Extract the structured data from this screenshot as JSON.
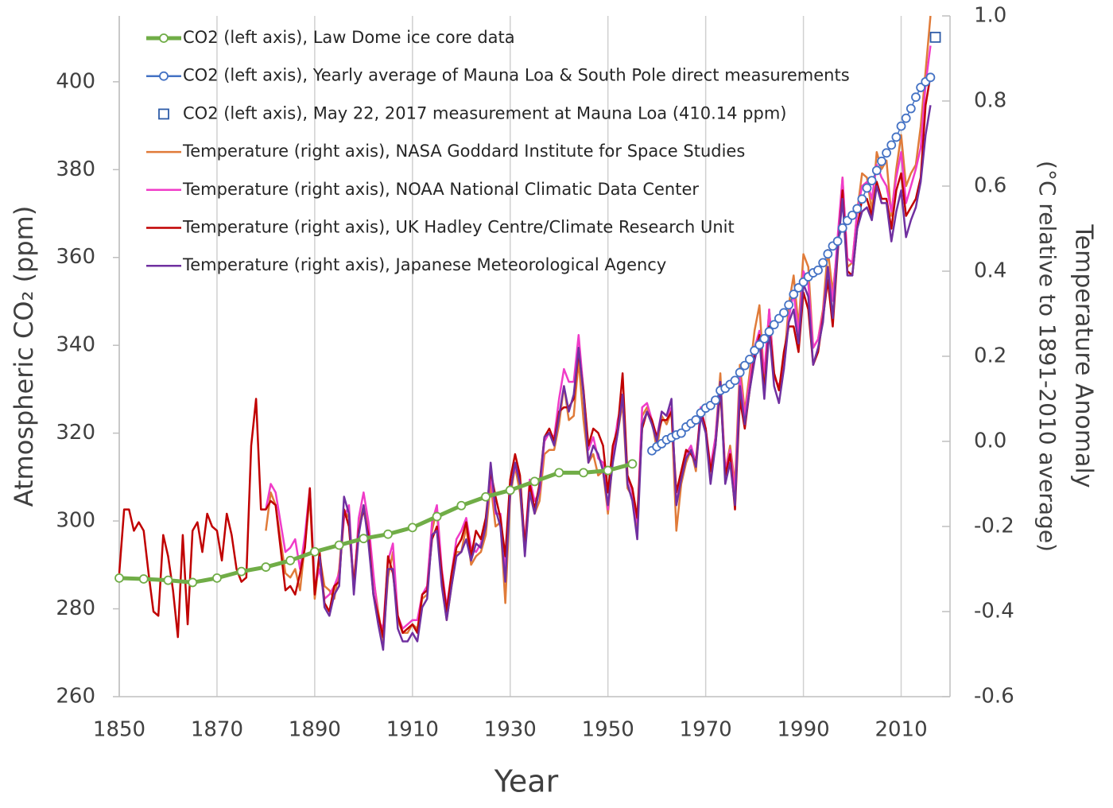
{
  "chart_data": {
    "type": "line",
    "xlabel": "Year",
    "ylabel": "Atmospheric CO₂ (ppm)",
    "y2label": [
      "Temperature Anomaly",
      "(°C relative to 1891-2010 average)"
    ],
    "xlim": [
      1850,
      2020
    ],
    "xticks": [
      1850,
      1870,
      1890,
      1910,
      1930,
      1950,
      1970,
      1990,
      2010
    ],
    "ylim": [
      260,
      415
    ],
    "yticks": [
      260,
      280,
      300,
      320,
      340,
      360,
      380,
      400
    ],
    "y2lim": [
      -0.6,
      1.0
    ],
    "y2ticks": [
      -0.6,
      -0.4,
      -0.2,
      {
        "value": 0,
        "label": "0.0"
      },
      0.2,
      0.4,
      0.6,
      0.8,
      {
        "value": 1,
        "label": "1.0"
      }
    ],
    "grid": "x",
    "legend": "upper left",
    "x": [
      1850,
      1851,
      1852,
      1853,
      1854,
      1855,
      1856,
      1857,
      1858,
      1859,
      1860,
      1861,
      1862,
      1863,
      1864,
      1865,
      1866,
      1867,
      1868,
      1869,
      1870,
      1871,
      1872,
      1873,
      1874,
      1875,
      1876,
      1877,
      1878,
      1879,
      1880,
      1881,
      1882,
      1883,
      1884,
      1885,
      1886,
      1887,
      1888,
      1889,
      1890,
      1891,
      1892,
      1893,
      1894,
      1895,
      1896,
      1897,
      1898,
      1899,
      1900,
      1901,
      1902,
      1903,
      1904,
      1905,
      1906,
      1907,
      1908,
      1909,
      1910,
      1911,
      1912,
      1913,
      1914,
      1915,
      1916,
      1917,
      1918,
      1919,
      1920,
      1921,
      1922,
      1923,
      1924,
      1925,
      1926,
      1927,
      1928,
      1929,
      1930,
      1931,
      1932,
      1933,
      1934,
      1935,
      1936,
      1937,
      1938,
      1939,
      1940,
      1941,
      1942,
      1943,
      1944,
      1945,
      1946,
      1947,
      1948,
      1949,
      1950,
      1951,
      1952,
      1953,
      1954,
      1955,
      1956,
      1957,
      1958,
      1959,
      1960,
      1961,
      1962,
      1963,
      1964,
      1965,
      1966,
      1967,
      1968,
      1969,
      1970,
      1971,
      1972,
      1973,
      1974,
      1975,
      1976,
      1977,
      1978,
      1979,
      1980,
      1981,
      1982,
      1983,
      1984,
      1985,
      1986,
      1987,
      1988,
      1989,
      1990,
      1991,
      1992,
      1993,
      1994,
      1995,
      1996,
      1997,
      1998,
      1999,
      2000,
      2001,
      2002,
      2003,
      2004,
      2005,
      2006,
      2007,
      2008,
      2009,
      2010,
      2011,
      2012,
      2013,
      2014,
      2015,
      2016
    ],
    "series": [
      {
        "name": "CO2 (left axis), Law Dome ice core data",
        "color": "#70ad47",
        "marker": "circle",
        "line": true,
        "width": 5,
        "x": [
          1850,
          1855,
          1860,
          1865,
          1870,
          1875,
          1880,
          1885,
          1890,
          1895,
          1900,
          1905,
          1910,
          1915,
          1920,
          1925,
          1930,
          1935,
          1940,
          1945,
          1950,
          1955
        ],
        "values": [
          287,
          286.8,
          286.5,
          286,
          287,
          288.5,
          289.5,
          291,
          293,
          294.5,
          296,
          297,
          298.5,
          301,
          303.5,
          305.5,
          307,
          309,
          311,
          311,
          311.5,
          313
        ]
      },
      {
        "name": "CO2 (left axis), Yearly average of Mauna Loa & South Pole direct measurements",
        "color": "#4472c4",
        "marker": "circle",
        "line": true,
        "width": 1.5,
        "x": [
          1959,
          1960,
          1961,
          1962,
          1963,
          1964,
          1965,
          1966,
          1967,
          1968,
          1969,
          1970,
          1971,
          1972,
          1973,
          1974,
          1975,
          1976,
          1977,
          1978,
          1979,
          1980,
          1981,
          1982,
          1983,
          1984,
          1985,
          1986,
          1987,
          1988,
          1989,
          1990,
          1991,
          1992,
          1993,
          1994,
          1995,
          1996,
          1997,
          1998,
          1999,
          2000,
          2001,
          2002,
          2003,
          2004,
          2005,
          2006,
          2007,
          2008,
          2009,
          2010,
          2011,
          2012,
          2013,
          2014,
          2015,
          2016
        ],
        "values": [
          316,
          316.9,
          317.6,
          318.5,
          319,
          319.6,
          320,
          321.4,
          322.2,
          323,
          324.6,
          325.7,
          326.3,
          327.5,
          329.7,
          330.2,
          331.1,
          332,
          333.8,
          335.4,
          336.8,
          338.8,
          340.1,
          341.5,
          343.1,
          344.7,
          346.1,
          347.4,
          349.2,
          351.6,
          353.1,
          354.4,
          355.6,
          356.5,
          357.1,
          358.8,
          360.8,
          362.6,
          363.7,
          366.7,
          368.4,
          369.6,
          371.1,
          373.3,
          375.8,
          377.5,
          379.8,
          381.9,
          383.8,
          385.6,
          387.4,
          389.9,
          391.7,
          393.9,
          396.5,
          398.7,
          400,
          401
        ]
      },
      {
        "name": "CO2 (left axis), May 22, 2017 measurement at Mauna Loa (410.14 ppm)",
        "color": "#2e5ca8",
        "marker": "square",
        "line": false,
        "x": [
          2017
        ],
        "values": [
          410.14
        ]
      },
      {
        "name": "Temperature (right axis), NASA Goddard Institute for Space Studies",
        "color": "#e07b39",
        "axis": "y2",
        "line": true,
        "width": 2.5,
        "values": [
          null,
          null,
          null,
          null,
          null,
          null,
          null,
          null,
          null,
          null,
          null,
          null,
          null,
          null,
          null,
          null,
          null,
          null,
          null,
          null,
          null,
          null,
          null,
          null,
          null,
          null,
          null,
          null,
          null,
          null,
          -0.21,
          -0.12,
          -0.15,
          -0.23,
          -0.31,
          -0.32,
          -0.3,
          -0.35,
          -0.24,
          -0.13,
          -0.37,
          -0.27,
          -0.34,
          -0.35,
          -0.37,
          -0.3,
          -0.16,
          -0.18,
          -0.33,
          -0.2,
          -0.15,
          -0.21,
          -0.32,
          -0.4,
          -0.47,
          -0.32,
          -0.26,
          -0.42,
          -0.45,
          -0.45,
          -0.43,
          -0.44,
          -0.37,
          -0.36,
          -0.21,
          -0.16,
          -0.33,
          -0.42,
          -0.34,
          -0.26,
          -0.26,
          -0.2,
          -0.29,
          -0.27,
          -0.26,
          -0.22,
          -0.1,
          -0.2,
          -0.19,
          -0.38,
          -0.13,
          -0.06,
          -0.12,
          -0.26,
          -0.12,
          -0.17,
          -0.14,
          -0.03,
          -0.02,
          -0.02,
          0.04,
          0.13,
          0.05,
          0.06,
          0.19,
          0.05,
          -0.05,
          -0.03,
          -0.08,
          -0.07,
          -0.17,
          -0.04,
          0.02,
          0.09,
          -0.11,
          -0.13,
          -0.2,
          0.06,
          0.08,
          0.05,
          -0.02,
          0.06,
          0.04,
          0.07,
          -0.21,
          -0.1,
          -0.05,
          -0.02,
          -0.07,
          0.08,
          0.03,
          -0.08,
          0.01,
          0.16,
          -0.07,
          -0.01,
          -0.1,
          0.18,
          0.07,
          0.16,
          0.26,
          0.32,
          0.14,
          0.31,
          0.16,
          0.12,
          0.18,
          0.32,
          0.39,
          0.27,
          0.44,
          0.41,
          0.22,
          0.24,
          0.31,
          0.45,
          0.35,
          0.46,
          0.62,
          0.41,
          0.42,
          0.54,
          0.63,
          0.62,
          0.54,
          0.68,
          0.64,
          0.66,
          0.53,
          0.64,
          0.72,
          0.6,
          0.63,
          0.65,
          0.74,
          0.87,
          1.0
        ]
      },
      {
        "name": "Temperature (right axis), NOAA National Climatic Data Center",
        "color": "#f03cc8",
        "axis": "y2",
        "line": true,
        "width": 2.5,
        "values": [
          null,
          null,
          null,
          null,
          null,
          null,
          null,
          null,
          null,
          null,
          null,
          null,
          null,
          null,
          null,
          null,
          null,
          null,
          null,
          null,
          null,
          null,
          null,
          null,
          null,
          null,
          null,
          null,
          null,
          null,
          -0.16,
          -0.1,
          -0.12,
          -0.19,
          -0.26,
          -0.25,
          -0.23,
          -0.3,
          -0.22,
          -0.11,
          -0.34,
          -0.3,
          -0.37,
          -0.36,
          -0.34,
          -0.31,
          -0.18,
          -0.15,
          -0.35,
          -0.18,
          -0.12,
          -0.19,
          -0.31,
          -0.42,
          -0.44,
          -0.28,
          -0.24,
          -0.41,
          -0.44,
          -0.43,
          -0.42,
          -0.42,
          -0.36,
          -0.34,
          -0.19,
          -0.15,
          -0.3,
          -0.39,
          -0.31,
          -0.23,
          -0.21,
          -0.18,
          -0.25,
          -0.26,
          -0.24,
          -0.19,
          -0.08,
          -0.17,
          -0.17,
          -0.3,
          -0.11,
          -0.06,
          -0.09,
          -0.24,
          -0.09,
          -0.14,
          -0.12,
          0.0,
          0.02,
          0.01,
          0.1,
          0.17,
          0.14,
          0.14,
          0.25,
          0.12,
          -0.02,
          0.01,
          -0.04,
          -0.05,
          -0.16,
          -0.03,
          0.05,
          0.1,
          -0.08,
          -0.12,
          -0.19,
          0.08,
          0.09,
          0.05,
          0.01,
          0.07,
          0.06,
          0.08,
          -0.15,
          -0.08,
          -0.03,
          -0.01,
          -0.05,
          0.08,
          0.03,
          -0.06,
          0.01,
          0.14,
          -0.07,
          -0.02,
          -0.12,
          0.15,
          0.06,
          0.14,
          0.22,
          0.26,
          0.16,
          0.31,
          0.15,
          0.13,
          0.17,
          0.29,
          0.35,
          0.25,
          0.4,
          0.37,
          0.22,
          0.24,
          0.3,
          0.41,
          0.33,
          0.48,
          0.62,
          0.43,
          0.42,
          0.54,
          0.6,
          0.61,
          0.57,
          0.65,
          0.62,
          0.6,
          0.54,
          0.62,
          0.68,
          0.56,
          0.6,
          0.64,
          0.69,
          0.84,
          0.93
        ]
      },
      {
        "name": "Temperature (right axis), UK Hadley Centre/Climate Research Unit",
        "color": "#c00000",
        "axis": "y2",
        "line": true,
        "width": 2.5,
        "values": [
          -0.31,
          -0.16,
          -0.16,
          -0.21,
          -0.19,
          -0.21,
          -0.31,
          -0.4,
          -0.41,
          -0.22,
          -0.27,
          -0.35,
          -0.46,
          -0.22,
          -0.43,
          -0.21,
          -0.19,
          -0.26,
          -0.17,
          -0.2,
          -0.21,
          -0.28,
          -0.17,
          -0.22,
          -0.3,
          -0.33,
          -0.32,
          -0.01,
          0.1,
          -0.16,
          -0.16,
          -0.14,
          -0.15,
          -0.25,
          -0.35,
          -0.34,
          -0.36,
          -0.31,
          -0.25,
          -0.11,
          -0.36,
          -0.26,
          -0.38,
          -0.4,
          -0.34,
          -0.33,
          -0.16,
          -0.2,
          -0.34,
          -0.21,
          -0.16,
          -0.22,
          -0.36,
          -0.41,
          -0.46,
          -0.27,
          -0.31,
          -0.41,
          -0.45,
          -0.44,
          -0.43,
          -0.45,
          -0.36,
          -0.35,
          -0.23,
          -0.2,
          -0.31,
          -0.4,
          -0.31,
          -0.25,
          -0.23,
          -0.19,
          -0.27,
          -0.21,
          -0.23,
          -0.18,
          -0.07,
          -0.13,
          -0.18,
          -0.27,
          -0.09,
          -0.03,
          -0.08,
          -0.25,
          -0.1,
          -0.16,
          -0.1,
          0.01,
          0.03,
          0.0,
          0.07,
          0.08,
          0.08,
          0.1,
          0.21,
          0.12,
          -0.01,
          0.03,
          0.02,
          -0.01,
          -0.12,
          -0.01,
          0.03,
          0.16,
          -0.08,
          -0.11,
          -0.18,
          0.03,
          0.07,
          0.05,
          0.01,
          0.05,
          0.05,
          0.07,
          -0.12,
          -0.07,
          -0.02,
          -0.03,
          -0.05,
          0.07,
          0.03,
          -0.07,
          -0.01,
          0.12,
          -0.08,
          -0.03,
          -0.16,
          0.1,
          0.03,
          0.12,
          0.2,
          0.25,
          0.12,
          0.27,
          0.16,
          0.12,
          0.21,
          0.27,
          0.27,
          0.21,
          0.35,
          0.31,
          0.18,
          0.21,
          0.29,
          0.38,
          0.27,
          0.44,
          0.59,
          0.4,
          0.39,
          0.5,
          0.57,
          0.57,
          0.53,
          0.61,
          0.57,
          0.57,
          0.5,
          0.59,
          0.63,
          0.53,
          0.55,
          0.57,
          0.62,
          0.79,
          0.86
        ]
      },
      {
        "name": "Temperature (right axis), Japanese Meteorological Agency",
        "color": "#7030a0",
        "axis": "y2",
        "line": true,
        "width": 2.5,
        "values": [
          null,
          null,
          null,
          null,
          null,
          null,
          null,
          null,
          null,
          null,
          null,
          null,
          null,
          null,
          null,
          null,
          null,
          null,
          null,
          null,
          null,
          null,
          null,
          null,
          null,
          null,
          null,
          null,
          null,
          null,
          null,
          null,
          null,
          null,
          null,
          null,
          null,
          null,
          null,
          null,
          null,
          -0.27,
          -0.39,
          -0.41,
          -0.36,
          -0.34,
          -0.13,
          -0.17,
          -0.36,
          -0.22,
          -0.15,
          -0.24,
          -0.36,
          -0.43,
          -0.49,
          -0.3,
          -0.3,
          -0.44,
          -0.47,
          -0.47,
          -0.45,
          -0.47,
          -0.39,
          -0.37,
          -0.22,
          -0.21,
          -0.34,
          -0.42,
          -0.34,
          -0.27,
          -0.26,
          -0.23,
          -0.28,
          -0.24,
          -0.25,
          -0.2,
          -0.05,
          -0.16,
          -0.2,
          -0.33,
          -0.12,
          -0.05,
          -0.1,
          -0.27,
          -0.12,
          -0.17,
          -0.11,
          0.01,
          0.02,
          -0.01,
          0.06,
          0.13,
          0.07,
          0.11,
          0.22,
          0.11,
          -0.05,
          -0.01,
          -0.03,
          -0.07,
          -0.15,
          -0.05,
          0.02,
          0.11,
          -0.1,
          -0.14,
          -0.23,
          0.04,
          0.07,
          0.04,
          0.0,
          0.07,
          0.06,
          0.1,
          -0.15,
          -0.09,
          -0.04,
          -0.02,
          -0.06,
          0.06,
          0.02,
          -0.1,
          -0.01,
          0.14,
          -0.1,
          -0.05,
          -0.15,
          0.13,
          0.04,
          0.12,
          0.19,
          0.24,
          0.1,
          0.26,
          0.13,
          0.09,
          0.17,
          0.28,
          0.31,
          0.23,
          0.37,
          0.34,
          0.18,
          0.22,
          0.28,
          0.41,
          0.29,
          0.45,
          0.57,
          0.39,
          0.39,
          0.5,
          0.54,
          0.55,
          0.52,
          0.6,
          0.56,
          0.56,
          0.47,
          0.54,
          0.59,
          0.48,
          0.52,
          0.55,
          0.61,
          0.72,
          0.79
        ]
      }
    ]
  }
}
